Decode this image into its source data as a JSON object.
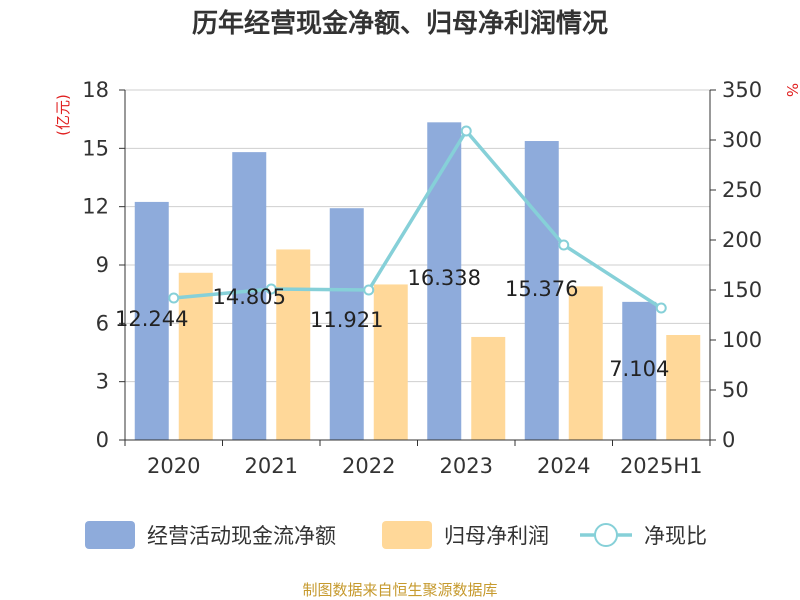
{
  "chart_data": {
    "type": "bar",
    "title": "历年经营现金净额、归母净利润情况",
    "categories": [
      "2020",
      "2021",
      "2022",
      "2023",
      "2024",
      "2025H1"
    ],
    "left_axis": {
      "unit": "(亿元)",
      "ticks": [
        "0",
        "3",
        "6",
        "9",
        "12",
        "15",
        "18"
      ],
      "ylim": [
        0,
        18
      ]
    },
    "right_axis": {
      "unit": "%",
      "ticks": [
        "0",
        "50",
        "100",
        "150",
        "200",
        "250",
        "300",
        "350"
      ],
      "ylim": [
        0,
        350
      ]
    },
    "series": [
      {
        "name": "经营活动现金流净额",
        "kind": "bar",
        "axis": "left",
        "color": "#8eabdb",
        "values": [
          12.244,
          14.805,
          11.921,
          16.338,
          15.376,
          7.104
        ],
        "labels": [
          "12.244",
          "14.805",
          "11.921",
          "16.338",
          "15.376",
          "7.104"
        ]
      },
      {
        "name": "归母净利润",
        "kind": "bar",
        "axis": "left",
        "color": "#ffd899",
        "values": [
          8.6,
          9.8,
          8.0,
          5.3,
          7.9,
          5.4
        ]
      },
      {
        "name": "净现比",
        "kind": "line",
        "axis": "right",
        "color": "#86d0d8",
        "values": [
          142,
          151,
          150,
          309,
          195,
          132
        ]
      }
    ],
    "grid": true,
    "legend_position": "bottom"
  },
  "source_note": "制图数据来自恒生聚源数据库"
}
